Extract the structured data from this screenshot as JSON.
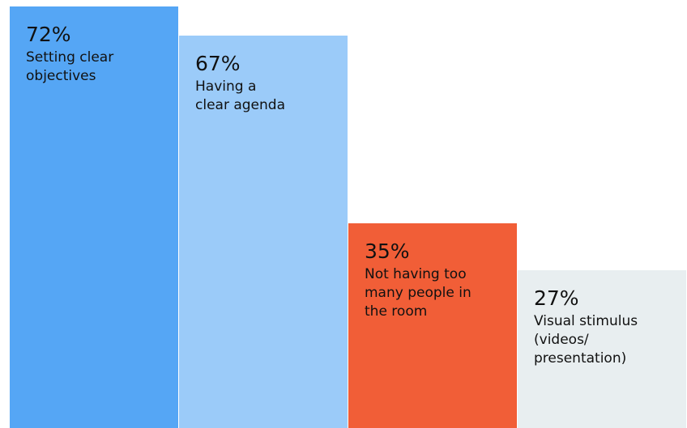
{
  "chart_data": {
    "type": "bar",
    "categories": [
      "Setting clear\nobjectives",
      "Having a\nclear agenda",
      "Not having too\nmany people in\nthe room",
      "Visual stimulus\n(videos/\npresentation)"
    ],
    "values": [
      72,
      67,
      35,
      27
    ],
    "value_labels": [
      "72%",
      "67%",
      "35%",
      "27%"
    ],
    "colors": [
      "#55a6f5",
      "#9bcbf9",
      "#f15e37",
      "#e8eef0"
    ],
    "title": "",
    "xlabel": "",
    "ylabel": "",
    "ylim": [
      0,
      72
    ],
    "grid": false
  }
}
